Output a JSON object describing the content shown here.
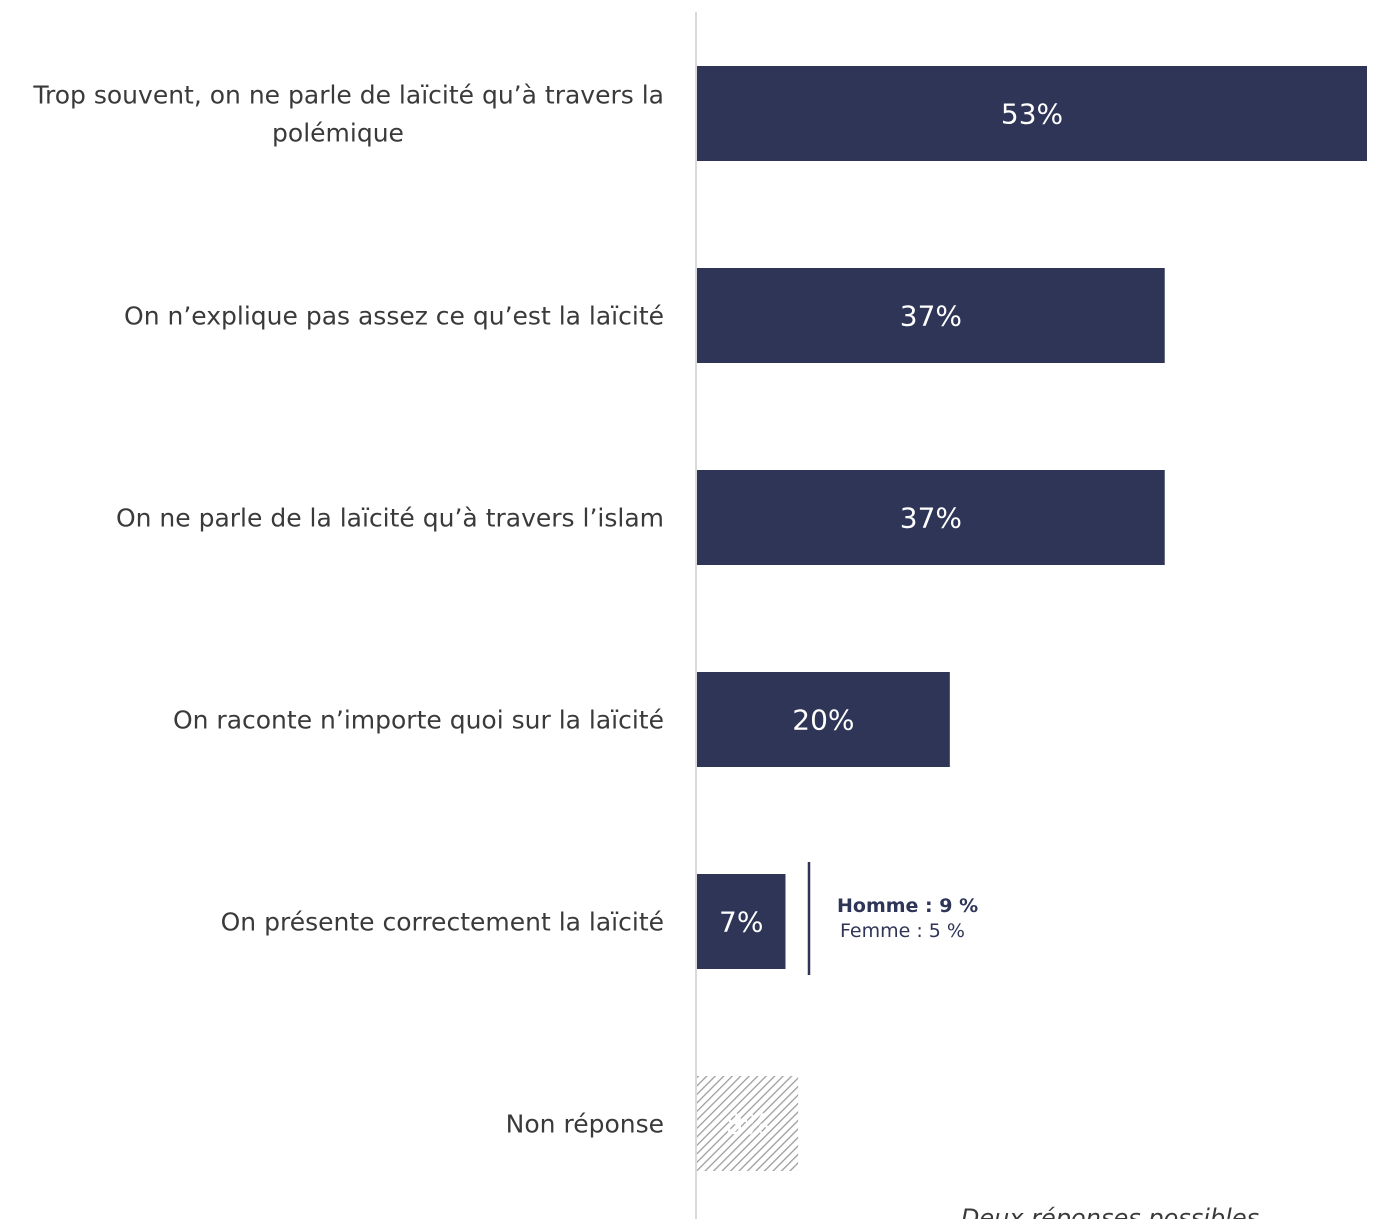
{
  "chart_data": {
    "type": "bar",
    "orientation": "horizontal",
    "categories": [
      [
        "Trop souvent, on ne parle de laïcité qu’à travers la",
        "polémique"
      ],
      [
        "On n’explique pas assez ce qu’est la laïcité"
      ],
      [
        "On ne parle de la laïcité qu’à travers l’islam"
      ],
      [
        "On raconte n’importe quoi sur la laïcité"
      ],
      [
        "On présente correctement la laïcité"
      ],
      [
        "Non réponse"
      ]
    ],
    "values": [
      53,
      37,
      37,
      20,
      7,
      8
    ],
    "value_labels": [
      "53%",
      "37%",
      "37%",
      "20%",
      "7%",
      "8%"
    ],
    "hatched": [
      false,
      false,
      false,
      false,
      false,
      true
    ],
    "xlim": [
      0,
      53
    ],
    "annotation": {
      "category_index": 4,
      "lines": [
        {
          "text": "Homme : 9  %",
          "bold": true
        },
        {
          "text": "Femme :  5 %",
          "bold": false
        }
      ]
    },
    "footnote": "Deux réponses possibles",
    "colors": {
      "bar": "#2e3557",
      "hatch": "#a6a6a6",
      "axis": "#d9d9d9",
      "label": "#3a3a3a"
    }
  }
}
